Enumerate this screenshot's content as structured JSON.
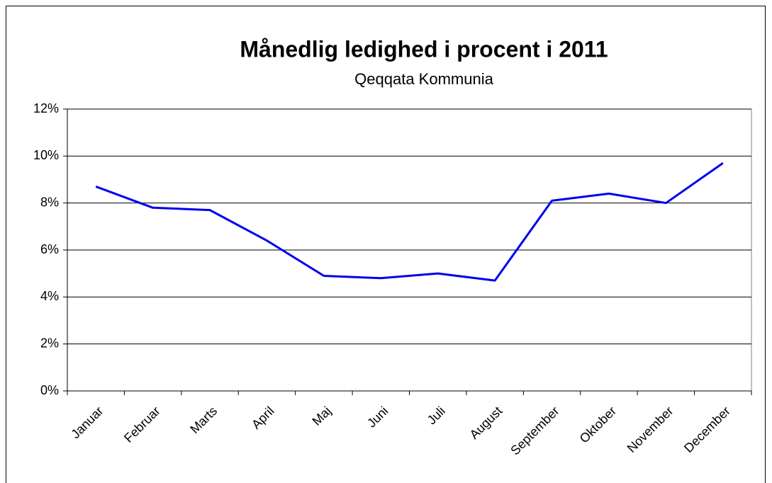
{
  "chart_data": {
    "type": "line",
    "title": "Månedlig ledighed i procent i 2011",
    "subtitle": "Qeqqata Kommunia",
    "categories": [
      "Januar",
      "Februar",
      "Marts",
      "April",
      "Maj",
      "Juni",
      "Juli",
      "August",
      "September",
      "Oktober",
      "November",
      "December"
    ],
    "series": [
      {
        "name": "Ledighed",
        "color": "#0000ee",
        "values": [
          8.7,
          7.8,
          7.7,
          6.4,
          4.9,
          4.8,
          5.0,
          4.7,
          8.1,
          8.4,
          8.0,
          9.7
        ]
      }
    ],
    "ylim": [
      0,
      12
    ],
    "yticks": [
      {
        "value": 0,
        "label": "0%"
      },
      {
        "value": 2,
        "label": "2%"
      },
      {
        "value": 4,
        "label": "4%"
      },
      {
        "value": 6,
        "label": "6%"
      },
      {
        "value": 8,
        "label": "8%"
      },
      {
        "value": 10,
        "label": "10%"
      },
      {
        "value": 12,
        "label": "12%"
      }
    ],
    "grid": true
  }
}
